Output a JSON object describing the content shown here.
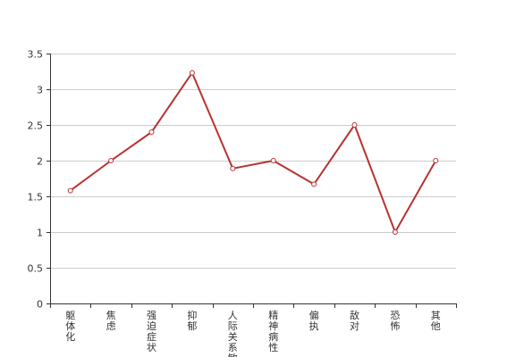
{
  "chart_data": {
    "type": "line",
    "title": "",
    "xlabel": "",
    "ylabel": "",
    "categories": [
      "躯体化",
      "焦虑",
      "强迫症状",
      "抑郁",
      "人际关系敏感",
      "精神病性",
      "偏执",
      "敌对",
      "恐怖",
      "其他"
    ],
    "series": [
      {
        "values": [
          1.58,
          2.0,
          2.4,
          3.23,
          1.89,
          2.0,
          1.67,
          2.5,
          1.0,
          2.0
        ]
      }
    ],
    "ylim": [
      0,
      3.5
    ],
    "yticks": [
      "0",
      "0.5",
      "1",
      "1.5",
      "2",
      "2.5",
      "3",
      "3.5"
    ],
    "grid": true,
    "legend": "none",
    "colors": {
      "line": "#b83232",
      "marker_fill": "#ffffff",
      "grid": "#cccccc",
      "axis": "#333333"
    }
  }
}
